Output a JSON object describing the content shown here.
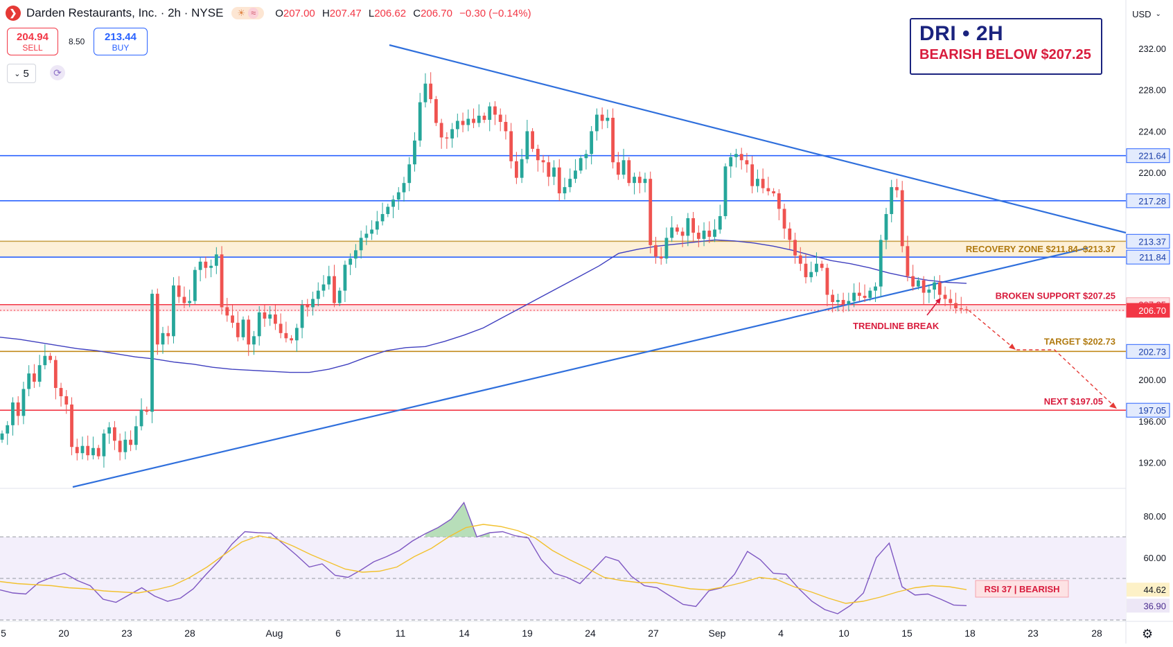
{
  "header": {
    "symbol_title": "Darden Restaurants, Inc. · 2h · NYSE",
    "logo_glyph": "❯",
    "ohlc": [
      {
        "k": "O",
        "v": "207.00"
      },
      {
        "k": "H",
        "v": "207.47"
      },
      {
        "k": "L",
        "v": "206.62"
      },
      {
        "k": "C",
        "v": "206.70"
      }
    ],
    "change": "−0.30 (−0.14%)"
  },
  "trade": {
    "sell_price": "204.94",
    "sell_label": "SELL",
    "spread": "8.50",
    "buy_price": "213.44",
    "buy_label": "BUY"
  },
  "interval_value": "5",
  "currency": "USD",
  "callout": {
    "line1": "DRI • 2H",
    "line2": "BEARISH BELOW $207.25"
  },
  "colors": {
    "up": "#26a69a",
    "down": "#ef5350",
    "trend": "#2962ff",
    "ma": "#3f3fbf",
    "rsi": "#7e57c2",
    "rsi_ma": "#f2c12e"
  },
  "chart_data": [
    {
      "type": "candlestick",
      "title": "",
      "y_axis_ticks": [
        232,
        228,
        224,
        220,
        200,
        196,
        192
      ],
      "ylim": [
        189.5,
        234
      ],
      "x_tick_labels": [
        "5",
        "20",
        "23",
        "28",
        "Aug",
        "6",
        "11",
        "14",
        "19",
        "24",
        "27",
        "Sep",
        "4",
        "10",
        "15",
        "18",
        "23",
        "28"
      ],
      "price_levels": [
        {
          "value": 221.64,
          "label": "221.64",
          "color": "#2962ff"
        },
        {
          "value": 217.28,
          "label": "217.28",
          "color": "#2962ff"
        },
        {
          "value": 213.37,
          "label": "213.37",
          "color": "#2962ff"
        },
        {
          "value": 211.84,
          "label": "211.84",
          "color": "#2962ff"
        },
        {
          "value": 207.25,
          "label": "207.25",
          "color": "#f23645"
        },
        {
          "value": 206.7,
          "label": "206.70",
          "color": "#f23645"
        },
        {
          "value": 202.73,
          "label": "202.73",
          "color": "#2962ff"
        },
        {
          "value": 197.05,
          "label": "197.05",
          "color": "#2962ff"
        }
      ],
      "zones": [
        {
          "from": 211.84,
          "to": 213.37,
          "label": "RECOVERY ZONE  $211.84–$213.37",
          "color": "#fdf0d8"
        },
        {
          "from": 206.6,
          "to": 207.25,
          "label": "BROKEN SUPPORT  $207.25",
          "color": "#fde2e4"
        }
      ],
      "annotations": [
        {
          "text": "TARGET  $202.73",
          "value": 202.73
        },
        {
          "text": "NEXT  $197.05",
          "value": 197.05
        },
        {
          "text": "TRENDLINE BREAK",
          "value": 206.5
        }
      ],
      "closes": [
        194.8,
        195.6,
        197.8,
        196.5,
        199.1,
        200.6,
        199.8,
        201.4,
        202.3,
        201.9,
        199.2,
        198.4,
        197.6,
        193.5,
        192.9,
        193.6,
        192.7,
        193.4,
        192.6,
        194.8,
        195.4,
        194.1,
        193.0,
        194.2,
        193.7,
        195.5,
        197.1,
        196.9,
        208.3,
        203.4,
        204.5,
        204.2,
        209.1,
        208.0,
        207.4,
        207.6,
        210.6,
        211.4,
        210.8,
        211.0,
        212.1,
        207.0,
        206.2,
        205.5,
        204.1,
        205.8,
        203.4,
        204.2,
        206.5,
        205.9,
        206.3,
        205.4,
        204.5,
        204.0,
        203.8,
        205.0,
        207.2,
        207.0,
        207.8,
        208.6,
        209.2,
        210.0,
        207.4,
        208.6,
        211.1,
        211.7,
        212.5,
        213.7,
        214.1,
        214.5,
        215.3,
        216.0,
        216.7,
        217.4,
        218.1,
        219.0,
        220.8,
        223.1,
        226.8,
        228.6,
        227.1,
        224.8,
        223.4,
        223.3,
        224.2,
        225.0,
        224.6,
        225.2,
        224.8,
        225.5,
        225.1,
        226.4,
        225.6,
        224.9,
        224.0,
        221.1,
        219.5,
        221.3,
        224.0,
        222.3,
        221.2,
        221.0,
        219.6,
        220.5,
        218.0,
        218.6,
        219.4,
        220.2,
        221.4,
        221.8,
        224.0,
        225.6,
        225.0,
        225.3,
        221.0,
        219.8,
        221.2,
        219.0,
        219.6,
        219.0,
        219.4,
        213.0,
        211.9,
        211.7,
        213.7,
        214.7,
        214.3,
        213.9,
        215.6,
        214.2,
        213.6,
        214.4,
        213.8,
        214.5,
        215.8,
        220.6,
        221.5,
        221.8,
        221.2,
        220.8,
        218.7,
        219.4,
        218.5,
        218.2,
        218.0,
        216.5,
        214.6,
        213.5,
        212.0,
        211.2,
        209.9,
        210.4,
        211.2,
        210.8,
        208.2,
        207.5,
        207.7,
        207.3,
        207.6,
        208.4,
        208.1,
        207.9,
        208.6,
        209.0,
        213.5,
        216.0,
        218.6,
        218.3,
        212.9,
        210.0,
        209.0,
        209.6,
        208.4,
        208.7,
        209.4,
        208.2,
        207.8,
        207.4,
        206.9,
        206.8,
        206.7
      ],
      "ma": [
        204.1,
        203.9,
        203.6,
        203.3,
        203.0,
        202.8,
        202.5,
        202.2,
        202.0,
        201.7,
        201.5,
        201.2,
        201.0,
        200.9,
        200.8,
        200.7,
        200.7,
        201.0,
        201.5,
        202.2,
        202.8,
        203.1,
        203.2,
        203.7,
        204.3,
        205.0,
        206.0,
        207.0,
        208.0,
        209.0,
        210.0,
        211.0,
        212.2,
        212.6,
        212.9,
        213.1,
        213.3,
        213.5,
        213.4,
        213.2,
        212.9,
        212.5,
        212.0,
        211.5,
        211.2,
        210.8,
        210.3,
        209.9,
        209.6,
        209.4,
        209.3
      ],
      "rsi": [
        44.5,
        43.0,
        42.5,
        48.0,
        50.5,
        52.5,
        49.0,
        46.5,
        40.0,
        38.5,
        42.0,
        45.5,
        41.5,
        39.0,
        40.5,
        45.0,
        52.0,
        58.5,
        66.5,
        72.5,
        72.0,
        71.8,
        66.5,
        61.2,
        55.5,
        57.0,
        51.5,
        50.5,
        54.0,
        58.0,
        60.5,
        63.5,
        68.0,
        71.5,
        74.5,
        78.5,
        86.5,
        70.0,
        72.0,
        72.5,
        70.5,
        69.5,
        59.0,
        52.5,
        50.5,
        47.5,
        54.0,
        60.5,
        58.5,
        51.0,
        46.5,
        45.5,
        41.5,
        37.5,
        36.5,
        44.0,
        45.5,
        52.0,
        63.0,
        59.0,
        52.5,
        52.0,
        45.0,
        39.0,
        35.0,
        33.0,
        37.0,
        43.0,
        60.0,
        67.0,
        46.0,
        42.0,
        42.5,
        40.0,
        37.2,
        36.9
      ],
      "rsi_ma": [
        48.5,
        47.5,
        47.0,
        46.5,
        45.5,
        45.0,
        44.0,
        43.5,
        43.0,
        44.5,
        46.5,
        50.5,
        55.5,
        61.5,
        67.5,
        70.5,
        69.0,
        65.5,
        61.5,
        58.0,
        54.5,
        53.0,
        53.5,
        55.5,
        60.5,
        64.5,
        70.0,
        74.5,
        76.0,
        75.0,
        73.0,
        69.5,
        63.5,
        59.0,
        55.0,
        50.5,
        49.0,
        48.0,
        48.0,
        46.5,
        45.0,
        44.5,
        46.0,
        48.0,
        50.5,
        49.5,
        46.0,
        43.5,
        40.5,
        38.0,
        39.0,
        41.0,
        43.5,
        45.5,
        46.5,
        46.0,
        44.6
      ],
      "rsi_ylim": [
        30,
        90
      ],
      "rsi_ticks": [
        80,
        60
      ],
      "rsi_value_labels": [
        "44.62",
        "36.90"
      ],
      "rsi_badge": "RSI 37  |  BEARISH"
    }
  ]
}
